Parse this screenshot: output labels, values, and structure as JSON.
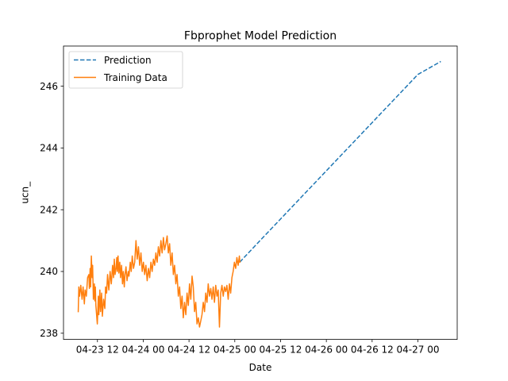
{
  "chart_data": {
    "type": "line",
    "title": "Fbprophet Model Prediction",
    "xlabel": "Date",
    "ylabel": "ucn_",
    "x_unit": "datetime",
    "x_ticks": [
      {
        "value": "2023-04-23 12:00",
        "label": "04-23 12"
      },
      {
        "value": "2023-04-24 00:00",
        "label": "04-24 00"
      },
      {
        "value": "2023-04-24 12:00",
        "label": "04-24 12"
      },
      {
        "value": "2023-04-25 00:00",
        "label": "04-25 00"
      },
      {
        "value": "2023-04-25 12:00",
        "label": "04-25 12"
      },
      {
        "value": "2023-04-26 00:00",
        "label": "04-26 00"
      },
      {
        "value": "2023-04-26 12:00",
        "label": "04-26 12"
      },
      {
        "value": "2023-04-27 00:00",
        "label": "04-27 00"
      }
    ],
    "y_ticks": [
      238,
      240,
      242,
      244,
      246
    ],
    "xlim": [
      "2023-04-23 03:06",
      "2023-04-27 10:18"
    ],
    "ylim": [
      237.8,
      247.3
    ],
    "grid": false,
    "legend_position": "upper left",
    "series": [
      {
        "name": "Prediction",
        "color": "#1f77b4",
        "style": "dashed",
        "x": [
          "2023-04-25 01:17",
          "2023-04-25 06:00",
          "2023-04-25 12:00",
          "2023-04-25 18:00",
          "2023-04-26 00:00",
          "2023-04-26 06:00",
          "2023-04-26 12:00",
          "2023-04-26 18:00",
          "2023-04-27 00:00",
          "2023-04-27 06:00"
        ],
        "y": [
          240.3,
          240.92,
          241.7,
          242.48,
          243.26,
          244.04,
          244.82,
          245.6,
          246.38,
          246.8
        ]
      },
      {
        "name": "Training Data",
        "color": "#ff7f0e",
        "style": "solid",
        "x": [
          "2023-04-23 06:58",
          "2023-04-23 07:07",
          "2023-04-23 07:19",
          "2023-04-23 07:38",
          "2023-04-23 07:58",
          "2023-04-23 08:14",
          "2023-04-23 08:34",
          "2023-04-23 08:46",
          "2023-04-23 09:05",
          "2023-04-23 09:25",
          "2023-04-23 09:45",
          "2023-04-23 09:53",
          "2023-04-23 10:05",
          "2023-04-23 10:12",
          "2023-04-23 10:24",
          "2023-04-23 10:36",
          "2023-04-23 10:44",
          "2023-04-23 10:56",
          "2023-04-23 11:11",
          "2023-04-23 11:19",
          "2023-04-23 11:27",
          "2023-04-23 11:35",
          "2023-04-23 11:58",
          "2023-04-23 12:14",
          "2023-04-23 12:22",
          "2023-04-23 12:38",
          "2023-04-23 12:49",
          "2023-04-23 13:05",
          "2023-04-23 13:17",
          "2023-04-23 13:36",
          "2023-04-23 13:56",
          "2023-04-23 14:08",
          "2023-04-23 14:24",
          "2023-04-23 14:39",
          "2023-04-23 14:59",
          "2023-04-23 15:19",
          "2023-04-23 15:38",
          "2023-04-23 15:58",
          "2023-04-23 16:13",
          "2023-04-23 16:25",
          "2023-04-23 16:37",
          "2023-04-23 16:52",
          "2023-04-23 17:04",
          "2023-04-23 17:12",
          "2023-04-23 17:24",
          "2023-04-23 17:36",
          "2023-04-23 17:51",
          "2023-04-23 18:03",
          "2023-04-23 18:19",
          "2023-04-23 18:34",
          "2023-04-23 18:46",
          "2023-04-23 19:02",
          "2023-04-23 19:13",
          "2023-04-23 19:29",
          "2023-04-23 19:45",
          "2023-04-23 20:04",
          "2023-04-23 20:16",
          "2023-04-23 20:36",
          "2023-04-23 20:51",
          "2023-04-23 21:07",
          "2023-04-23 21:27",
          "2023-04-23 21:46",
          "2023-04-23 22:06",
          "2023-04-23 22:25",
          "2023-04-23 22:45",
          "2023-04-23 23:04",
          "2023-04-23 23:24",
          "2023-04-23 23:44",
          "2023-04-24 00:03",
          "2023-04-24 00:23",
          "2023-04-24 00:42",
          "2023-04-24 01:02",
          "2023-04-24 01:22",
          "2023-04-24 01:41",
          "2023-04-24 02:01",
          "2023-04-24 02:20",
          "2023-04-24 02:40",
          "2023-04-24 03:00",
          "2023-04-24 03:19",
          "2023-04-24 03:39",
          "2023-04-24 03:58",
          "2023-04-24 04:18",
          "2023-04-24 04:38",
          "2023-04-24 04:57",
          "2023-04-24 05:17",
          "2023-04-24 05:36",
          "2023-04-24 05:56",
          "2023-04-24 06:16",
          "2023-04-24 06:35",
          "2023-04-24 06:55",
          "2023-04-24 07:14",
          "2023-04-24 07:34",
          "2023-04-24 07:54",
          "2023-04-24 08:13",
          "2023-04-24 08:33",
          "2023-04-24 08:52",
          "2023-04-24 09:12",
          "2023-04-24 09:32",
          "2023-04-24 09:51",
          "2023-04-24 10:11",
          "2023-04-24 10:30",
          "2023-04-24 10:50",
          "2023-04-24 11:10",
          "2023-04-24 11:29",
          "2023-04-24 11:49",
          "2023-04-24 12:08",
          "2023-04-24 12:28",
          "2023-04-24 12:48",
          "2023-04-24 13:07",
          "2023-04-24 13:27",
          "2023-04-24 13:46",
          "2023-04-24 14:06",
          "2023-04-24 14:26",
          "2023-04-24 14:45",
          "2023-04-24 15:05",
          "2023-04-24 15:24",
          "2023-04-24 15:44",
          "2023-04-24 16:04",
          "2023-04-24 16:23",
          "2023-04-24 16:43",
          "2023-04-24 17:02",
          "2023-04-24 17:22",
          "2023-04-24 17:42",
          "2023-04-24 18:01",
          "2023-04-24 18:21",
          "2023-04-24 18:40",
          "2023-04-24 19:00",
          "2023-04-24 19:20",
          "2023-04-24 19:39",
          "2023-04-24 19:59",
          "2023-04-24 20:18",
          "2023-04-24 20:38",
          "2023-04-24 20:58",
          "2023-04-24 21:17",
          "2023-04-24 21:37",
          "2023-04-24 21:56",
          "2023-04-24 22:16",
          "2023-04-24 22:36",
          "2023-04-24 22:55",
          "2023-04-24 23:15",
          "2023-04-24 23:34",
          "2023-04-24 23:54",
          "2023-04-25 00:14",
          "2023-04-25 00:33",
          "2023-04-25 00:53",
          "2023-04-25 01:12",
          "2023-04-25 01:20"
        ],
        "y": [
          238.7,
          239.5,
          239.2,
          239.55,
          239.1,
          239.5,
          238.95,
          239.4,
          239.2,
          239.8,
          239.9,
          239.45,
          240.1,
          239.5,
          240.5,
          239.8,
          240.2,
          239.1,
          239.6,
          239.05,
          239.5,
          238.9,
          238.3,
          239.2,
          238.6,
          239.4,
          238.7,
          239.3,
          238.55,
          239.1,
          238.8,
          239.5,
          239.3,
          239.9,
          239.4,
          240.0,
          239.6,
          240.2,
          239.8,
          240.4,
          239.9,
          240.1,
          240.45,
          240.0,
          240.5,
          239.95,
          240.3,
          239.8,
          240.2,
          239.6,
          240.0,
          239.5,
          239.9,
          240.15,
          239.7,
          240.0,
          239.85,
          240.3,
          240.0,
          240.5,
          240.1,
          240.3,
          241.0,
          240.4,
          240.8,
          240.2,
          240.6,
          240.0,
          240.3,
          239.9,
          240.2,
          239.7,
          240.1,
          239.8,
          240.3,
          240.0,
          240.4,
          240.2,
          240.6,
          240.3,
          240.8,
          240.5,
          241.0,
          240.6,
          241.1,
          240.7,
          240.9,
          241.15,
          240.6,
          240.9,
          240.2,
          240.6,
          239.9,
          240.2,
          239.6,
          239.9,
          239.2,
          239.5,
          238.8,
          239.2,
          238.5,
          239.0,
          238.6,
          239.3,
          238.9,
          239.6,
          239.1,
          239.85,
          239.5,
          238.7,
          239.0,
          238.3,
          238.5,
          238.2,
          238.4,
          238.6,
          239.0,
          238.7,
          239.3,
          239.0,
          239.6,
          239.2,
          239.45,
          239.1,
          239.5,
          239.0,
          239.55,
          239.2,
          239.4,
          238.2,
          239.3,
          239.55,
          239.2,
          239.5,
          239.35,
          239.55,
          239.1,
          239.6,
          239.3,
          239.8,
          240.0,
          240.3,
          240.1,
          240.45,
          240.2,
          240.5,
          240.3
        ]
      }
    ]
  }
}
